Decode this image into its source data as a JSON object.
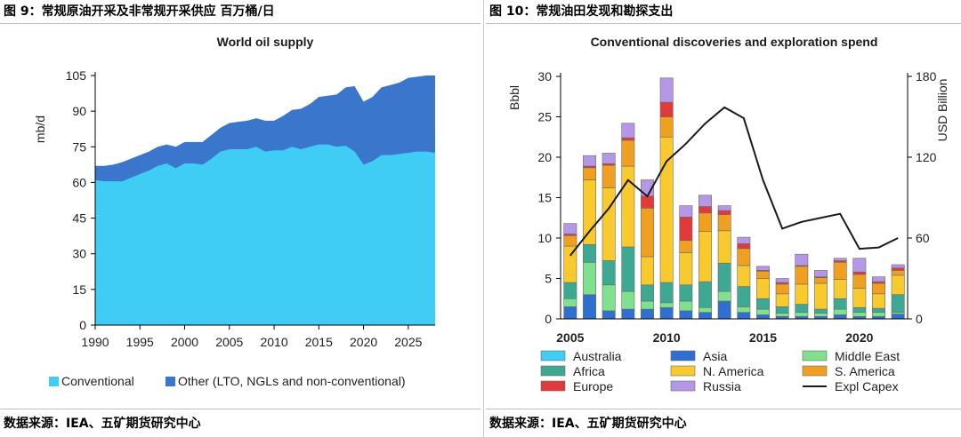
{
  "left": {
    "caption": "图 9：常规原油开采及非常规开采供应 百万桶/日",
    "source": "数据来源：IEA、五矿期货研究中心",
    "colors": {
      "conventional": "#3fcdf5",
      "other": "#3a77cc"
    },
    "chart_data": {
      "type": "area",
      "title": "World oil supply",
      "ylabel": "mb/d",
      "ylim": [
        0,
        105
      ],
      "yticks": [
        0,
        15,
        30,
        45,
        60,
        75,
        90,
        105
      ],
      "xlim": [
        1990,
        2028
      ],
      "xticks": [
        1990,
        1995,
        2000,
        2005,
        2010,
        2015,
        2020,
        2025
      ],
      "x": [
        1990,
        1991,
        1992,
        1993,
        1994,
        1995,
        1996,
        1997,
        1998,
        1999,
        2000,
        2001,
        2002,
        2003,
        2004,
        2005,
        2006,
        2007,
        2008,
        2009,
        2010,
        2011,
        2012,
        2013,
        2014,
        2015,
        2016,
        2017,
        2018,
        2019,
        2020,
        2021,
        2022,
        2023,
        2024,
        2025,
        2026,
        2027,
        2028
      ],
      "series": [
        {
          "name": "Conventional",
          "values": [
            61,
            60.5,
            60.5,
            60.5,
            62,
            63.5,
            65,
            67,
            68,
            66,
            68,
            68,
            67.5,
            70,
            73,
            74,
            74,
            74,
            75,
            73,
            73.5,
            73.5,
            75,
            74,
            75,
            76,
            76,
            75,
            75.5,
            73,
            67.5,
            69,
            71.5,
            71.5,
            72,
            72.5,
            73,
            73,
            72.5
          ]
        },
        {
          "name": "Other (LTO, NGLs and non-conventional)",
          "values": [
            67,
            67,
            67.5,
            68.5,
            70,
            71.5,
            73,
            75,
            76,
            75,
            77,
            77,
            77,
            80,
            83,
            85,
            85.5,
            86,
            87,
            86,
            86,
            88,
            90.5,
            91,
            93,
            96,
            96.5,
            97,
            100,
            100.5,
            94,
            96,
            100,
            101,
            102,
            104,
            104.5,
            105,
            105
          ]
        }
      ],
      "legend": [
        "Conventional",
        "Other (LTO, NGLs and non-conventional)"
      ],
      "legend_position": "bottom"
    }
  },
  "right": {
    "caption": "图 10：常规油田发现和勘探支出",
    "source": "数据来源：IEA、五矿期货研究中心",
    "chart_data": {
      "type": "bar",
      "stacked": true,
      "title": "Conventional discoveries and exploration spend",
      "ylabel": "Bbbl",
      "y2label": "USD Billion",
      "ylim": [
        0,
        30
      ],
      "yticks": [
        0,
        5,
        10,
        15,
        20,
        25,
        30
      ],
      "y2lim": [
        0,
        180
      ],
      "y2ticks": [
        0,
        60,
        120,
        180
      ],
      "xticks": [
        2005,
        2010,
        2015,
        2020
      ],
      "categories": [
        2005,
        2006,
        2007,
        2008,
        2009,
        2010,
        2011,
        2012,
        2013,
        2014,
        2015,
        2016,
        2017,
        2018,
        2019,
        2020,
        2021,
        2022
      ],
      "series": [
        {
          "name": "Asia",
          "color": "#2e6fd0",
          "values": [
            1.5,
            3,
            1,
            1.2,
            1.2,
            1.4,
            1,
            0.8,
            2.2,
            0.8,
            0.5,
            0.3,
            0.3,
            0.3,
            0.5,
            0.3,
            0.3,
            0.6
          ]
        },
        {
          "name": "Middle East",
          "color": "#7fe08d",
          "values": [
            1,
            4,
            3.2,
            2.2,
            1,
            0.6,
            1.2,
            0.6,
            1.2,
            0.7,
            0.7,
            0.4,
            0.5,
            0.4,
            0.7,
            0.5,
            0.5,
            0.2
          ]
        },
        {
          "name": "Africa",
          "color": "#3ea993",
          "values": [
            2,
            2.2,
            3,
            5.5,
            2,
            2.5,
            2,
            3.2,
            3.5,
            2.5,
            1.3,
            0.8,
            1,
            0.5,
            1.3,
            0.6,
            0.5,
            2.2
          ]
        },
        {
          "name": "N. America",
          "color": "#f8ca2e",
          "values": [
            4.5,
            8,
            9,
            10,
            3.5,
            18,
            4,
            6.2,
            4,
            2.6,
            2.5,
            1.6,
            2.5,
            3.2,
            2.4,
            2.4,
            1.8,
            2.4
          ]
        },
        {
          "name": "S. America",
          "color": "#f0a020",
          "values": [
            1.3,
            1.5,
            2.8,
            3.2,
            6,
            2.5,
            1.5,
            2.3,
            2,
            2.1,
            0.9,
            1.2,
            2.2,
            0.7,
            2.1,
            1.7,
            1.3,
            0.6
          ]
        },
        {
          "name": "Europe",
          "color": "#e03a3a",
          "values": [
            0.2,
            0.2,
            0.2,
            0.3,
            1.5,
            1.8,
            2.9,
            0.8,
            0.5,
            0.6,
            0.1,
            0.2,
            0.1,
            0.1,
            0.2,
            0.3,
            0.2,
            0.3
          ]
        },
        {
          "name": "Russia",
          "color": "#b497e6",
          "values": [
            1.3,
            1.3,
            1.3,
            1.8,
            2,
            3,
            1.4,
            1.4,
            0.6,
            0.8,
            0.5,
            0.5,
            1.4,
            0.8,
            0.3,
            1.7,
            0.6,
            0.4
          ]
        },
        {
          "name": "Australia",
          "color": "#3fcdf5",
          "values": [
            0,
            0,
            0,
            0,
            0,
            0,
            0,
            0,
            0,
            0,
            0,
            0,
            0,
            0,
            0,
            0,
            0,
            0
          ]
        }
      ],
      "line": {
        "name": "Expl Capex",
        "color": "#1a1a1a",
        "axis": "y2",
        "values": [
          47,
          65,
          82,
          103,
          91,
          117,
          130,
          145,
          157,
          149,
          103,
          67,
          72,
          75,
          78,
          52,
          53,
          60
        ]
      },
      "legend": [
        "Australia",
        "Asia",
        "Middle East",
        "Africa",
        "N. America",
        "S. America",
        "Europe",
        "Russia",
        "Expl Capex"
      ],
      "legend_position": "bottom"
    }
  }
}
